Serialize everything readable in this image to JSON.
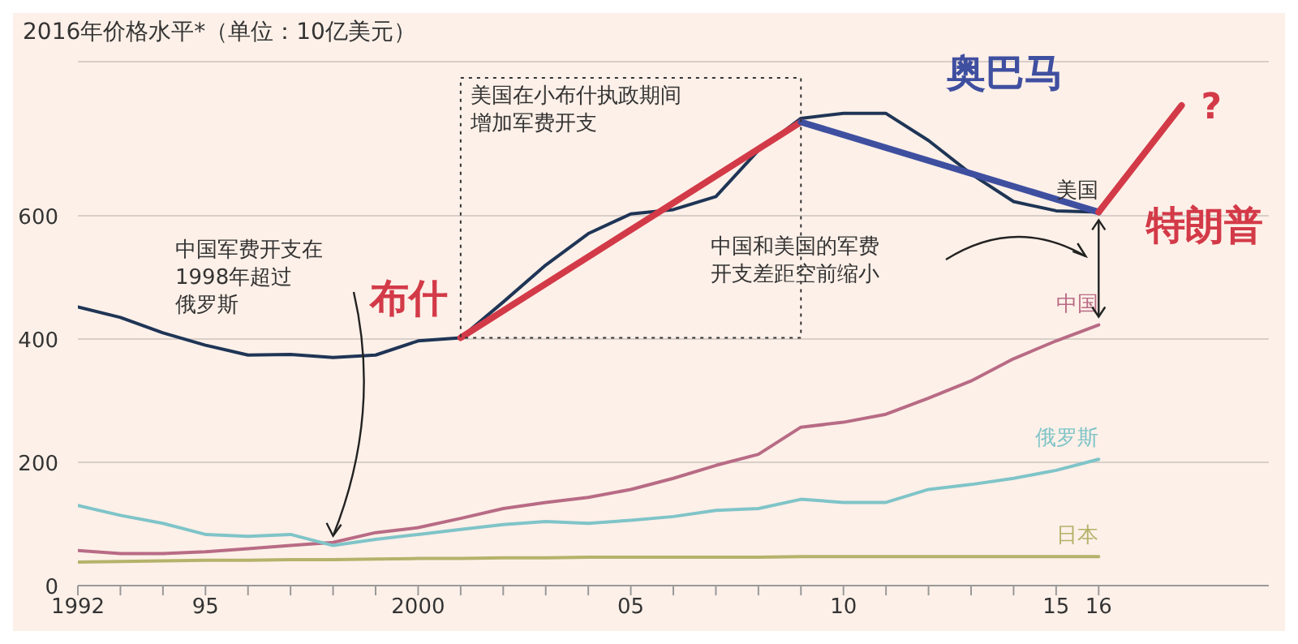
{
  "chart_data": {
    "type": "line",
    "title": "2016年价格水平*（单位：10亿美元）",
    "x": [
      1992,
      1993,
      1994,
      1995,
      1996,
      1997,
      1998,
      1999,
      2000,
      2001,
      2002,
      2003,
      2004,
      2005,
      2006,
      2007,
      2008,
      2009,
      2010,
      2011,
      2012,
      2013,
      2014,
      2015,
      2016
    ],
    "series": [
      {
        "name": "美国",
        "color": "#1f3556",
        "values": [
          452,
          435,
          410,
          390,
          374,
          375,
          370,
          374,
          397,
          402,
          460,
          520,
          571,
          603,
          610,
          631,
          706,
          758,
          766,
          766,
          722,
          668,
          623,
          608,
          606
        ]
      },
      {
        "name": "中国",
        "color": "#b86b85",
        "values": [
          57,
          52,
          52,
          55,
          60,
          65,
          70,
          86,
          94,
          109,
          125,
          135,
          143,
          156,
          174,
          195,
          213,
          257,
          265,
          278,
          304,
          332,
          368,
          397,
          423
        ]
      },
      {
        "name": "俄罗斯",
        "color": "#7fc4c8",
        "values": [
          130,
          114,
          101,
          83,
          80,
          83,
          65,
          75,
          83,
          91,
          99,
          104,
          101,
          106,
          112,
          122,
          125,
          140,
          135,
          135,
          156,
          164,
          174,
          187,
          205
        ]
      },
      {
        "name": "日本",
        "color": "#b5b26b",
        "values": [
          38,
          39,
          40,
          41,
          41,
          42,
          42,
          43,
          44,
          44,
          45,
          45,
          46,
          46,
          46,
          46,
          46,
          47,
          47,
          47,
          47,
          47,
          47,
          47,
          47
        ]
      },
      {
        "name": "布什",
        "color": "#d33a48",
        "x": [
          2001,
          2009
        ],
        "values": [
          402,
          752
        ]
      },
      {
        "name": "奥巴马",
        "color": "#3f4fa0",
        "x": [
          2009,
          2016
        ],
        "values": [
          752,
          606
        ]
      },
      {
        "name": "特朗普",
        "color": "#d33a48",
        "x": [
          2016,
          2017.95
        ],
        "values": [
          606,
          779
        ]
      }
    ],
    "xlim": [
      1992,
      2020
    ],
    "xticks": [
      1992,
      {
        "value": 1993,
        "label": null
      },
      {
        "value": 1994,
        "label": null
      },
      {
        "value": 1995,
        "label": "95"
      },
      {
        "value": 1996,
        "label": null
      },
      {
        "value": 1997,
        "label": null
      },
      {
        "value": 1998,
        "label": null
      },
      {
        "value": 1999,
        "label": null
      },
      2000,
      {
        "value": 2001,
        "label": null
      },
      {
        "value": 2002,
        "label": null
      },
      {
        "value": 2003,
        "label": null
      },
      {
        "value": 2004,
        "label": null
      },
      {
        "value": 2005,
        "label": "05"
      },
      {
        "value": 2006,
        "label": null
      },
      {
        "value": 2007,
        "label": null
      },
      {
        "value": 2008,
        "label": null
      },
      {
        "value": 2009,
        "label": null
      },
      {
        "value": 2010,
        "label": "10"
      },
      {
        "value": 2011,
        "label": null
      },
      {
        "value": 2012,
        "label": null
      },
      {
        "value": 2013,
        "label": null
      },
      {
        "value": 2014,
        "label": null
      },
      {
        "value": 2015,
        "label": "15"
      },
      {
        "value": 2016,
        "label": "16"
      }
    ],
    "ylim": [
      0,
      850
    ],
    "yticks": [
      0,
      200,
      400,
      600
    ],
    "grid": "y",
    "marker": "none",
    "line_style": "solid",
    "annotations": [
      "美国在小布什执政期间增加军费开支",
      "中国军费开支在1998年超过俄罗斯",
      "中国和美国的军费开支差距空前缩小",
      "?"
    ]
  }
}
